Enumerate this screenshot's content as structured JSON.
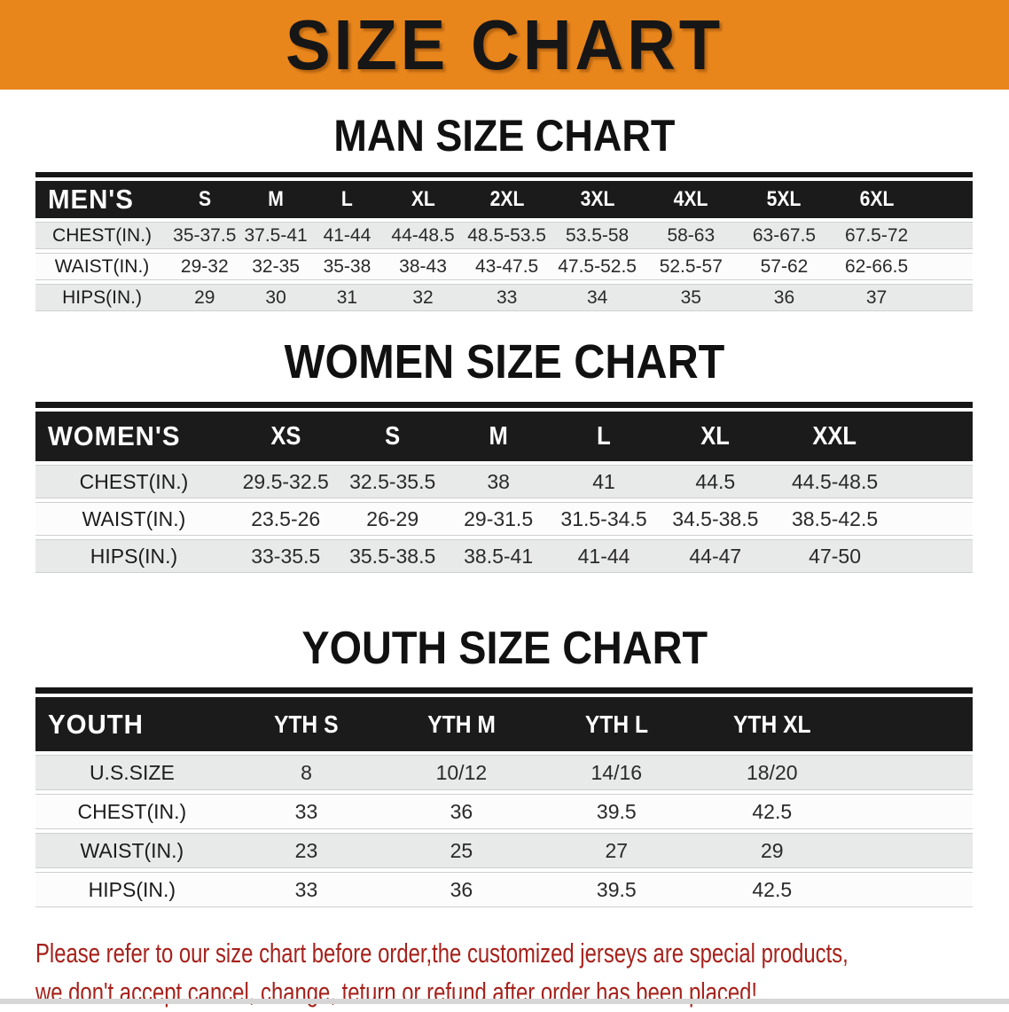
{
  "banner": {
    "title": "SIZE CHART",
    "bg_color": "#e8861c"
  },
  "sections": [
    {
      "id": "men",
      "heading": "MAN SIZE CHART",
      "table": {
        "corner": "MEN'S",
        "sizes": [
          "S",
          "M",
          "L",
          "XL",
          "2XL",
          "3XL",
          "4XL",
          "5XL",
          "6XL"
        ],
        "rows": [
          {
            "label": "CHEST(IN.)",
            "values": [
              "35-37.5",
              "37.5-41",
              "41-44",
              "44-48.5",
              "48.5-53.5",
              "53.5-58",
              "58-63",
              "63-67.5",
              "67.5-72"
            ]
          },
          {
            "label": "WAIST(IN.)",
            "values": [
              "29-32",
              "32-35",
              "35-38",
              "38-43",
              "43-47.5",
              "47.5-52.5",
              "52.5-57",
              "57-62",
              "62-66.5"
            ]
          },
          {
            "label": "HIPS(IN.)",
            "values": [
              "29",
              "30",
              "31",
              "32",
              "33",
              "34",
              "35",
              "36",
              "37"
            ]
          }
        ]
      }
    },
    {
      "id": "women",
      "heading": "WOMEN SIZE CHART",
      "table": {
        "corner": "WOMEN'S",
        "sizes": [
          "XS",
          "S",
          "M",
          "L",
          "XL",
          "XXL"
        ],
        "rows": [
          {
            "label": "CHEST(IN.)",
            "values": [
              "29.5-32.5",
              "32.5-35.5",
              "38",
              "41",
              "44.5",
              "44.5-48.5"
            ]
          },
          {
            "label": "WAIST(IN.)",
            "values": [
              "23.5-26",
              "26-29",
              "29-31.5",
              "31.5-34.5",
              "34.5-38.5",
              "38.5-42.5"
            ]
          },
          {
            "label": "HIPS(IN.)",
            "values": [
              "33-35.5",
              "35.5-38.5",
              "38.5-41",
              "41-44",
              "44-47",
              "47-50"
            ]
          }
        ]
      }
    },
    {
      "id": "youth",
      "heading": "YOUTH SIZE CHART",
      "table": {
        "corner": "YOUTH",
        "sizes": [
          "YTH S",
          "YTH M",
          "YTH L",
          "YTH XL"
        ],
        "rows": [
          {
            "label": "U.S.SIZE",
            "values": [
              "8",
              "10/12",
              "14/16",
              "18/20"
            ]
          },
          {
            "label": "CHEST(IN.)",
            "values": [
              "33",
              "36",
              "39.5",
              "42.5"
            ]
          },
          {
            "label": "WAIST(IN.)",
            "values": [
              "23",
              "25",
              "27",
              "29"
            ]
          },
          {
            "label": "HIPS(IN.)",
            "values": [
              "33",
              "36",
              "39.5",
              "42.5"
            ]
          }
        ]
      }
    }
  ],
  "footnote": {
    "line1": "Please refer to our size chart before order,the customized jerseys are special products,",
    "line2": "we don't accept cancel, change, teturn or refund after order has been placed!",
    "color": "#a6211b"
  }
}
